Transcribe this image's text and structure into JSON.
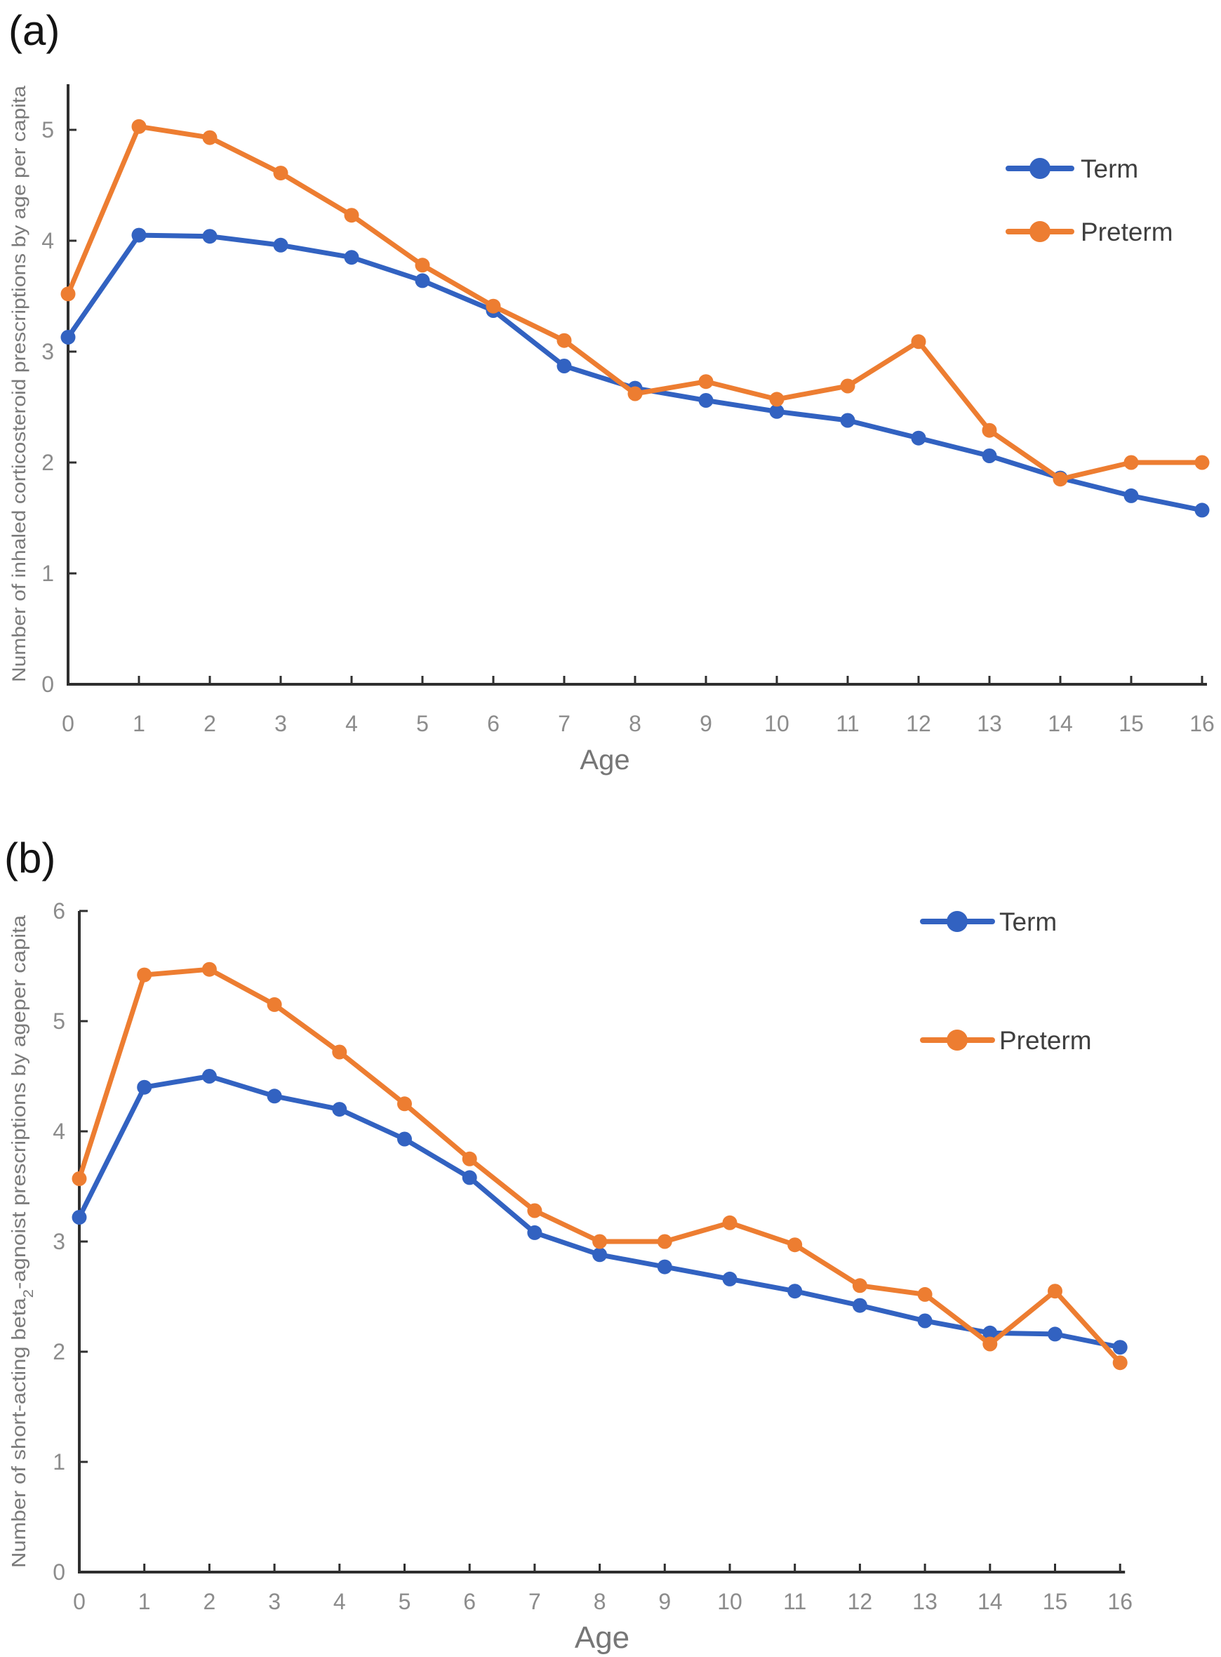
{
  "colors": {
    "term_blue": "#3262c1",
    "preterm_orange": "#ed7d31",
    "axis": "#2f2f2f",
    "tick_labels": "#8c8c8c",
    "axis_titles": "#7a7a7a",
    "legend_text": "#3f3f3f",
    "panel_labels": "#141414",
    "background": "#ffffff"
  },
  "chart_data": [
    {
      "id": "a",
      "panel_label": "(a)",
      "type": "line",
      "xlabel": "Age",
      "ylabel": "Number of inhaled corticosteroid prescriptions by age per capita",
      "ylabel_parts": {
        "prefix": "Number of inhaled corticosteroid prescriptions by age per capita",
        "sub": "",
        "suffix": ""
      },
      "x": [
        0,
        1,
        2,
        3,
        4,
        5,
        6,
        7,
        8,
        9,
        10,
        11,
        12,
        13,
        14,
        15,
        16
      ],
      "xticklabels": [
        "0",
        "1",
        "2",
        "3",
        "4",
        "5",
        "6",
        "7",
        "8",
        "9",
        "10",
        "11",
        "12",
        "13",
        "14",
        "15",
        "16"
      ],
      "xlim": [
        0,
        16
      ],
      "ylim": [
        0,
        5
      ],
      "yticks": [
        0,
        1,
        2,
        3,
        4,
        5
      ],
      "grid": false,
      "legend_position": "upper-right",
      "series": [
        {
          "name": "Term",
          "color": "#3262c1",
          "marker": "circle",
          "values": [
            3.13,
            4.05,
            4.04,
            3.96,
            3.85,
            3.64,
            3.37,
            2.87,
            2.67,
            2.56,
            2.46,
            2.38,
            2.22,
            2.06,
            1.86,
            1.7,
            1.57
          ]
        },
        {
          "name": "Preterm",
          "color": "#ed7d31",
          "marker": "circle",
          "values": [
            3.52,
            5.03,
            4.93,
            4.61,
            4.23,
            3.78,
            3.41,
            3.1,
            2.62,
            2.73,
            2.57,
            2.69,
            3.09,
            2.29,
            1.85,
            2.0,
            2.0
          ]
        }
      ]
    },
    {
      "id": "b",
      "panel_label": "(b)",
      "type": "line",
      "xlabel": "Age",
      "ylabel": "Number of short-acting beta2-agnoist prescriptions by ageper capita",
      "ylabel_parts": {
        "prefix": "Number of short-acting beta",
        "sub": "2",
        "suffix": "-agnoist prescriptions by ageper capita"
      },
      "x": [
        0,
        1,
        2,
        3,
        4,
        5,
        6,
        7,
        8,
        9,
        10,
        11,
        12,
        13,
        14,
        15,
        16
      ],
      "xticklabels": [
        "0",
        "1",
        "2",
        "3",
        "4",
        "5",
        "6",
        "7",
        "8",
        "9",
        "10",
        "11",
        "12",
        "13",
        "14",
        "15",
        "16"
      ],
      "xlim": [
        0,
        16
      ],
      "ylim": [
        0,
        6
      ],
      "yticks": [
        0,
        1,
        2,
        3,
        4,
        5,
        6
      ],
      "grid": false,
      "legend_position": "upper-right",
      "series": [
        {
          "name": "Term",
          "color": "#3262c1",
          "marker": "circle",
          "values": [
            3.22,
            4.4,
            4.5,
            4.32,
            4.2,
            3.93,
            3.58,
            3.08,
            2.88,
            2.77,
            2.66,
            2.55,
            2.42,
            2.28,
            2.17,
            2.16,
            2.04
          ]
        },
        {
          "name": "Preterm",
          "color": "#ed7d31",
          "marker": "circle",
          "values": [
            3.57,
            5.42,
            5.47,
            5.15,
            4.72,
            4.25,
            3.75,
            3.28,
            3.0,
            3.0,
            3.17,
            2.97,
            2.6,
            2.52,
            2.07,
            2.55,
            1.9
          ]
        }
      ]
    }
  ]
}
